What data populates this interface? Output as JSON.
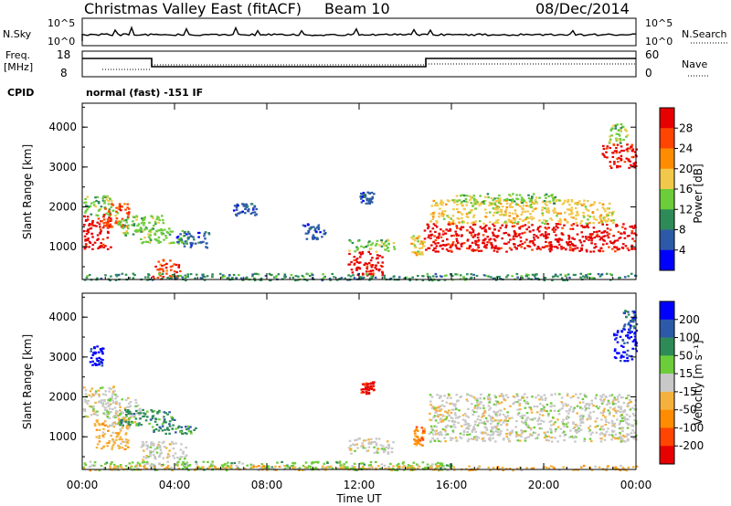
{
  "header": {
    "title": "Christmas Valley East (fitACF)",
    "beam": "Beam 10",
    "date": "08/Dec/2014"
  },
  "panels": {
    "nsky": {
      "label": "N.Sky",
      "scale_top": "10^5",
      "scale_bottom": "10^0",
      "right_label": "N.Search"
    },
    "freq": {
      "label_line1": "Freq.",
      "label_line2": "[MHz]",
      "ticks_left": [
        "18",
        "8"
      ],
      "ticks_right": [
        "60",
        "0"
      ],
      "right_label": "Nave"
    },
    "cpid": {
      "label": "CPID",
      "text": "normal (fast) -151 IF"
    }
  },
  "chart_data": [
    {
      "type": "heatmap",
      "name": "power",
      "xlabel": "Time UT",
      "ylabel": "Slant Range [km]",
      "xlim_hours": [
        0,
        24
      ],
      "ylim_km": [
        180,
        4600
      ],
      "xticks": [
        "00:00",
        "04:00",
        "08:00",
        "12:00",
        "16:00",
        "20:00",
        "00:00"
      ],
      "yticks": [
        1000,
        2000,
        3000,
        4000
      ],
      "colorbar": {
        "label": "Power [dB]",
        "ticks": [
          "28",
          "24",
          "20",
          "16",
          "12",
          "8",
          "4"
        ],
        "colors": [
          "#0000ff",
          "#2d5aa8",
          "#2e8b57",
          "#6ccc3a",
          "#f2c84b",
          "#ff8c00",
          "#ff4500",
          "#e60000"
        ]
      },
      "regions": [
        {
          "t": [
            0.0,
            1.2
          ],
          "r": [
            950,
            1800
          ],
          "level": 7
        },
        {
          "t": [
            0.0,
            1.5
          ],
          "r": [
            1800,
            2300
          ],
          "level": 3
        },
        {
          "t": [
            0.8,
            2.0
          ],
          "r": [
            1500,
            2100
          ],
          "level": 6
        },
        {
          "t": [
            1.5,
            3.5
          ],
          "r": [
            1300,
            1800
          ],
          "level": 3
        },
        {
          "t": [
            2.5,
            4.5
          ],
          "r": [
            1100,
            1500
          ],
          "level": 3
        },
        {
          "t": [
            3.0,
            4.2
          ],
          "r": [
            200,
            700
          ],
          "level": 6
        },
        {
          "t": [
            4.0,
            5.5
          ],
          "r": [
            1000,
            1400
          ],
          "level": 1
        },
        {
          "t": [
            6.5,
            7.5
          ],
          "r": [
            1800,
            2100
          ],
          "level": 1
        },
        {
          "t": [
            9.5,
            10.5
          ],
          "r": [
            1200,
            1600
          ],
          "level": 1
        },
        {
          "t": [
            11.5,
            13.0
          ],
          "r": [
            300,
            900
          ],
          "level": 7
        },
        {
          "t": [
            11.5,
            13.5
          ],
          "r": [
            900,
            1200
          ],
          "level": 3
        },
        {
          "t": [
            12.0,
            12.6
          ],
          "r": [
            2100,
            2400
          ],
          "level": 1
        },
        {
          "t": [
            14.2,
            14.8
          ],
          "r": [
            800,
            1300
          ],
          "level": 4
        },
        {
          "t": [
            14.8,
            24.0
          ],
          "r": [
            900,
            1600
          ],
          "level": 7
        },
        {
          "t": [
            15.0,
            23.0
          ],
          "r": [
            1600,
            2200
          ],
          "level": 4
        },
        {
          "t": [
            16.0,
            20.5
          ],
          "r": [
            2100,
            2350
          ],
          "level": 3
        },
        {
          "t": [
            22.5,
            24.0
          ],
          "r": [
            3000,
            3600
          ],
          "level": 7
        },
        {
          "t": [
            22.8,
            23.6
          ],
          "r": [
            3600,
            4100
          ],
          "level": 3
        },
        {
          "t": [
            0.0,
            24.0
          ],
          "r": [
            180,
            350
          ],
          "level": 2
        }
      ]
    },
    {
      "type": "heatmap",
      "name": "velocity",
      "xlabel": "Time UT",
      "ylabel": "Slant Range [km]",
      "xlim_hours": [
        0,
        24
      ],
      "ylim_km": [
        180,
        4600
      ],
      "xticks": [
        "00:00",
        "04:00",
        "08:00",
        "12:00",
        "16:00",
        "20:00",
        "00:00"
      ],
      "yticks": [
        1000,
        2000,
        3000,
        4000
      ],
      "colorbar": {
        "label": "Velocity [m s⁻¹]",
        "ticks": [
          "200",
          "100",
          "50",
          "15",
          "-15",
          "-50",
          "-100",
          "-200"
        ],
        "colors": [
          "#e60000",
          "#ff4500",
          "#ff8c00",
          "#f5b13d",
          "#c8c8c8",
          "#6ccc3a",
          "#2e8b57",
          "#2d5aa8",
          "#0000ff"
        ]
      },
      "regions": [
        {
          "t": [
            0.0,
            1.5
          ],
          "r": [
            1500,
            2300
          ],
          "level": 4
        },
        {
          "t": [
            1.0,
            2.5
          ],
          "r": [
            1300,
            2000
          ],
          "level": 4
        },
        {
          "t": [
            0.5,
            2.0
          ],
          "r": [
            700,
            1500
          ],
          "level": 3
        },
        {
          "t": [
            1.5,
            4.0
          ],
          "r": [
            1300,
            1700
          ],
          "level": 6
        },
        {
          "t": [
            3.0,
            5.0
          ],
          "r": [
            1100,
            1300
          ],
          "level": 6
        },
        {
          "t": [
            2.5,
            4.5
          ],
          "r": [
            300,
            900
          ],
          "level": 4
        },
        {
          "t": [
            0.0,
            16.0
          ],
          "r": [
            180,
            400
          ],
          "level": 5
        },
        {
          "t": [
            12.0,
            12.6
          ],
          "r": [
            2100,
            2400
          ],
          "level": 0
        },
        {
          "t": [
            11.5,
            13.5
          ],
          "r": [
            600,
            1000
          ],
          "level": 4
        },
        {
          "t": [
            14.3,
            14.8
          ],
          "r": [
            800,
            1300
          ],
          "level": 2
        },
        {
          "t": [
            15.0,
            24.0
          ],
          "r": [
            900,
            2100
          ],
          "level": 4
        },
        {
          "t": [
            0.3,
            0.9
          ],
          "r": [
            2800,
            3300
          ],
          "level": 8
        },
        {
          "t": [
            23.0,
            24.0
          ],
          "r": [
            2900,
            3700
          ],
          "level": 8
        },
        {
          "t": [
            23.4,
            24.0
          ],
          "r": [
            3700,
            4200
          ],
          "level": 7
        },
        {
          "t": [
            0.0,
            24.0
          ],
          "r": [
            180,
            300
          ],
          "level": 3
        }
      ]
    }
  ]
}
